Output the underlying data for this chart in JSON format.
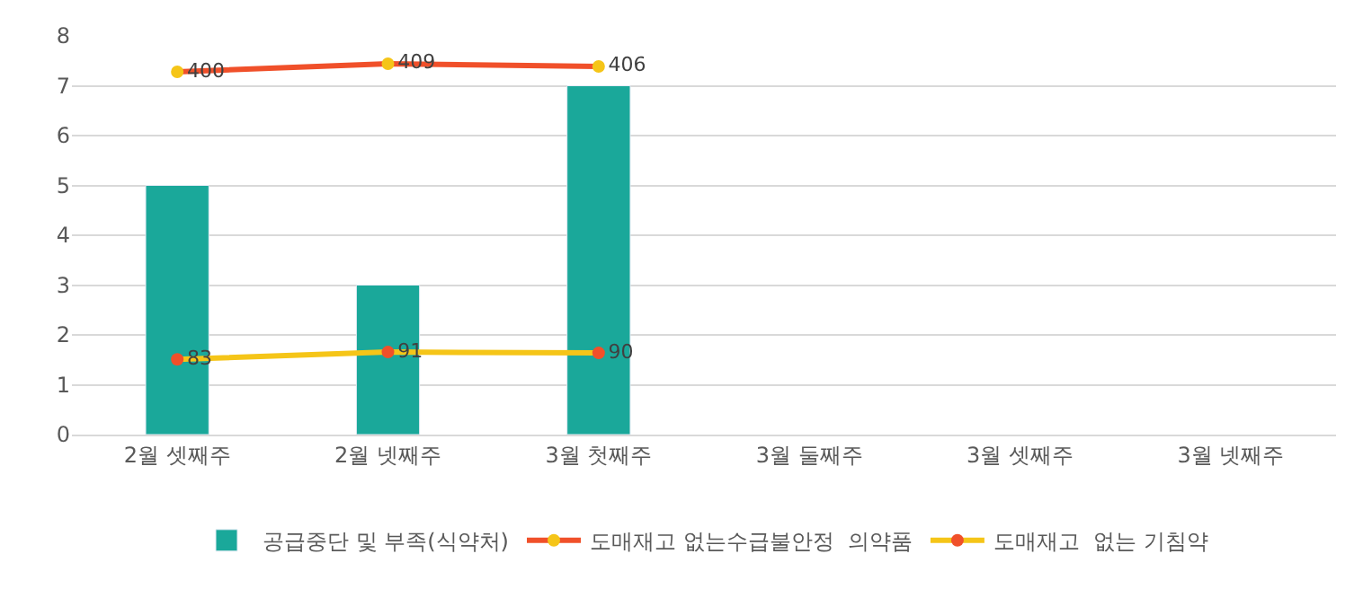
{
  "chart_data": {
    "type": "bar",
    "categories": [
      "2월 셋째주",
      "2월 넷째주",
      "3월 첫째주",
      "3월 둘째주",
      "3월 셋째주",
      "3월 넷째주"
    ],
    "series": [
      {
        "name": "공급중단 및 부족(식약처)",
        "color": "#1aa89a",
        "values": [
          5,
          3,
          7,
          null,
          null,
          null
        ]
      },
      {
        "name": "도매재고 없는수급불안정  의약품",
        "type": "line",
        "axis": "y2",
        "color": "#f0502a",
        "marker": "circle",
        "values": [
          400,
          409,
          406,
          null,
          null,
          null
        ],
        "value_labels": [
          "400",
          "409",
          "406",
          null,
          null,
          null
        ]
      },
      {
        "name": "도매재고  없는 기침약",
        "type": "line",
        "axis": "y2",
        "color": "#f5c518",
        "marker": "circle",
        "values": [
          83,
          91,
          90,
          null,
          null,
          null
        ],
        "value_labels": [
          "83",
          "91",
          "90",
          null,
          null,
          null
        ]
      }
    ],
    "ylim": [
      0,
      8
    ],
    "yticks": [
      0,
      1,
      2,
      3,
      4,
      5,
      6,
      7,
      8
    ],
    "grid": "y",
    "legend": "bottom"
  }
}
